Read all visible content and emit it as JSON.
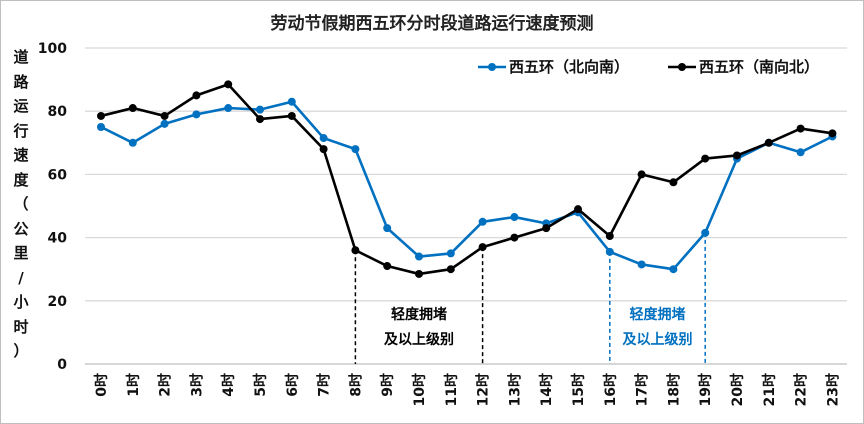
{
  "chart_data": {
    "type": "line",
    "title": "劳动节假期西五环分时段道路运行速度预测",
    "ylabel": "道路运行速度（公里/小时）",
    "xlabel": "",
    "ylim": [
      0,
      100
    ],
    "yticks": [
      0,
      20,
      40,
      60,
      80,
      100
    ],
    "grid": true,
    "legend_position": "top-right",
    "categories": [
      "0时",
      "1时",
      "2时",
      "3时",
      "4时",
      "5时",
      "6时",
      "7时",
      "8时",
      "9时",
      "10时",
      "11时",
      "12时",
      "13时",
      "14时",
      "15时",
      "16时",
      "17时",
      "18时",
      "19时",
      "20时",
      "21时",
      "22时",
      "23时"
    ],
    "series": [
      {
        "name": "西五环（北向南）",
        "color": "#0070c0",
        "values": [
          75,
          70,
          76,
          79,
          81,
          80.5,
          83,
          71.5,
          68,
          43,
          34,
          35,
          45,
          46.5,
          44.5,
          48,
          35.5,
          31.5,
          30,
          41.5,
          65,
          70,
          67,
          72
        ]
      },
      {
        "name": "西五环（南向北）",
        "color": "#000000",
        "values": [
          78.5,
          81,
          78.5,
          85,
          88.5,
          77.5,
          78.5,
          68,
          36,
          31,
          28.5,
          30,
          37,
          40,
          43,
          49,
          40.5,
          60,
          57.5,
          65,
          66,
          70,
          74.5,
          73
        ]
      }
    ],
    "annotations": [
      {
        "text_line1": "轻度拥堵",
        "text_line2": "及以上级别",
        "from_hour": 8,
        "to_hour": 12,
        "series": 1,
        "color": "#000000"
      },
      {
        "text_line1": "轻度拥堵",
        "text_line2": "及以上级别",
        "from_hour": 16,
        "to_hour": 19,
        "series": 0,
        "color": "#0070c0"
      }
    ]
  }
}
